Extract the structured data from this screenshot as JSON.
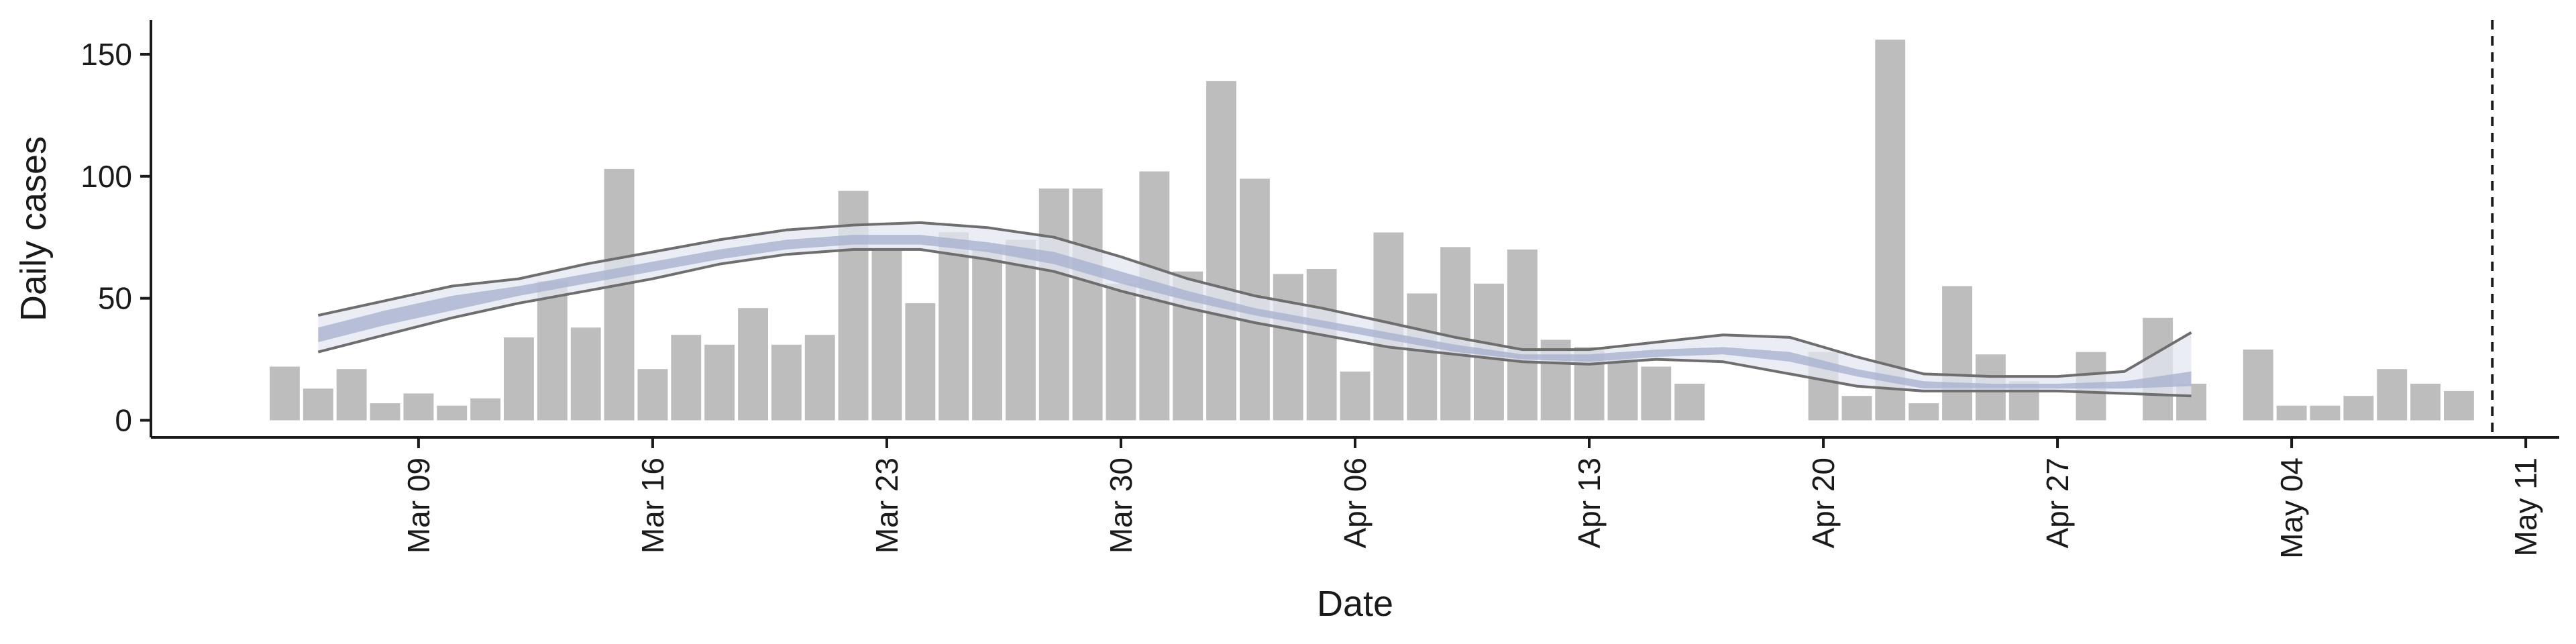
{
  "chart_data": {
    "type": "bar",
    "xlabel": "Date",
    "ylabel": "Daily cases",
    "ylim": [
      -7,
      164
    ],
    "xlim": [
      "2020-03-01",
      "2020-05-12"
    ],
    "y_ticks": [
      0,
      50,
      100,
      150
    ],
    "x_ticks": [
      {
        "date": "2020-03-09",
        "label": "Mar 09"
      },
      {
        "date": "2020-03-16",
        "label": "Mar 16"
      },
      {
        "date": "2020-03-23",
        "label": "Mar 23"
      },
      {
        "date": "2020-03-30",
        "label": "Mar 30"
      },
      {
        "date": "2020-04-06",
        "label": "Apr 06"
      },
      {
        "date": "2020-04-13",
        "label": "Apr 13"
      },
      {
        "date": "2020-04-20",
        "label": "Apr 20"
      },
      {
        "date": "2020-04-27",
        "label": "Apr 27"
      },
      {
        "date": "2020-05-04",
        "label": "May 04"
      },
      {
        "date": "2020-05-11",
        "label": "May 11"
      }
    ],
    "grid": false,
    "legend": "none",
    "bars": {
      "dates": [
        "2020-03-05",
        "2020-03-06",
        "2020-03-07",
        "2020-03-08",
        "2020-03-09",
        "2020-03-10",
        "2020-03-11",
        "2020-03-12",
        "2020-03-13",
        "2020-03-14",
        "2020-03-15",
        "2020-03-16",
        "2020-03-17",
        "2020-03-18",
        "2020-03-19",
        "2020-03-20",
        "2020-03-21",
        "2020-03-22",
        "2020-03-23",
        "2020-03-24",
        "2020-03-25",
        "2020-03-26",
        "2020-03-27",
        "2020-03-28",
        "2020-03-29",
        "2020-03-30",
        "2020-03-31",
        "2020-04-01",
        "2020-04-02",
        "2020-04-03",
        "2020-04-04",
        "2020-04-05",
        "2020-04-06",
        "2020-04-07",
        "2020-04-08",
        "2020-04-09",
        "2020-04-10",
        "2020-04-11",
        "2020-04-12",
        "2020-04-13",
        "2020-04-14",
        "2020-04-15",
        "2020-04-16",
        "2020-04-17",
        "2020-04-18",
        "2020-04-19",
        "2020-04-20",
        "2020-04-21",
        "2020-04-22",
        "2020-04-23",
        "2020-04-24",
        "2020-04-25",
        "2020-04-26",
        "2020-04-27",
        "2020-04-28",
        "2020-04-29",
        "2020-04-30",
        "2020-05-01",
        "2020-05-02",
        "2020-05-03",
        "2020-05-04",
        "2020-05-05",
        "2020-05-06",
        "2020-05-07",
        "2020-05-08",
        "2020-05-09",
        "2020-05-10"
      ],
      "values": [
        22,
        13,
        21,
        7,
        11,
        6,
        9,
        34,
        57,
        38,
        103,
        21,
        35,
        31,
        46,
        31,
        35,
        94,
        70,
        48,
        77,
        70,
        74,
        95,
        95,
        56,
        102,
        61,
        139,
        99,
        60,
        62,
        20,
        77,
        52,
        71,
        56,
        70,
        33,
        30,
        25,
        22,
        15,
        0,
        0,
        0,
        28,
        10,
        156,
        7,
        55,
        27,
        16,
        0,
        28,
        0,
        42,
        15,
        0,
        29,
        6,
        6,
        10,
        21,
        15,
        12,
        0
      ],
      "color": "#bdbdbd"
    },
    "estimate": {
      "dates": [
        "2020-03-06",
        "2020-03-08",
        "2020-03-10",
        "2020-03-12",
        "2020-03-14",
        "2020-03-16",
        "2020-03-18",
        "2020-03-20",
        "2020-03-22",
        "2020-03-24",
        "2020-03-26",
        "2020-03-28",
        "2020-03-30",
        "2020-04-01",
        "2020-04-03",
        "2020-04-05",
        "2020-04-07",
        "2020-04-09",
        "2020-04-11",
        "2020-04-13",
        "2020-04-15",
        "2020-04-17",
        "2020-04-19",
        "2020-04-21",
        "2020-04-23",
        "2020-04-25",
        "2020-04-27",
        "2020-04-29",
        "2020-05-01"
      ],
      "upper90": [
        43,
        49,
        55,
        58,
        64,
        69,
        74,
        78,
        80,
        81,
        79,
        75,
        67,
        58,
        51,
        46,
        40,
        34,
        29,
        29,
        32,
        35,
        34,
        26,
        19,
        18,
        18,
        20,
        36
      ],
      "lower90": [
        28,
        35,
        42,
        48,
        53,
        58,
        64,
        68,
        70,
        70,
        66,
        61,
        53,
        46,
        40,
        35,
        30,
        27,
        24,
        23,
        25,
        24,
        19,
        14,
        12,
        12,
        12,
        11,
        10
      ],
      "upper50": [
        38,
        45,
        51,
        55,
        60,
        65,
        70,
        74,
        76,
        76,
        73,
        69,
        61,
        53,
        46,
        41,
        36,
        31,
        27,
        27,
        29,
        30,
        28,
        21,
        16,
        15,
        15,
        16,
        20
      ],
      "lower50": [
        32,
        39,
        45,
        51,
        56,
        61,
        66,
        70,
        72,
        72,
        69,
        64,
        56,
        49,
        43,
        38,
        33,
        28,
        25,
        24,
        26,
        27,
        24,
        18,
        13,
        13,
        13,
        13,
        14
      ],
      "ci_upper_line": [
        43,
        49,
        55,
        58,
        64,
        69,
        74,
        78,
        80,
        81,
        79,
        75,
        67,
        58,
        51,
        46,
        40,
        34,
        29,
        29,
        32,
        35,
        34,
        26,
        19,
        18,
        18,
        20,
        36
      ],
      "ci_lower_line": [
        28,
        35,
        42,
        48,
        53,
        58,
        64,
        68,
        70,
        70,
        66,
        61,
        53,
        46,
        40,
        35,
        30,
        27,
        24,
        23,
        25,
        24,
        19,
        14,
        12,
        12,
        12,
        11,
        10
      ],
      "inner_color": "#a9b3cf",
      "outer_color": "#e4e7f1",
      "line_color": "#6e6e6e"
    },
    "vline": {
      "date": "2020-05-10",
      "style": "dashed",
      "color": "#1a1a1a"
    }
  }
}
